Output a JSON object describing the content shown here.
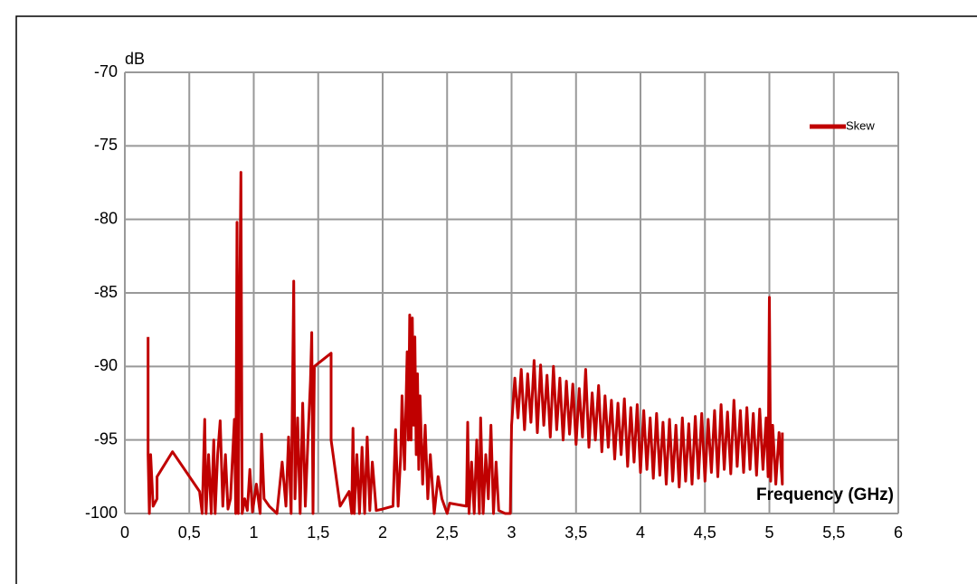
{
  "chart_data": {
    "type": "line",
    "y_label": "dB",
    "x_label": "Frequency (GHz)",
    "xlim": [
      0,
      6
    ],
    "ylim": [
      -100,
      -70
    ],
    "xticks": [
      0,
      {
        "value": 0.5,
        "label": "0,5"
      },
      1,
      {
        "value": 1.5,
        "label": "1,5"
      },
      2,
      {
        "value": 2.5,
        "label": "2,5"
      },
      3,
      {
        "value": 3.5,
        "label": "3,5"
      },
      4,
      {
        "value": 4.5,
        "label": "4,5"
      },
      5,
      {
        "value": 5.5,
        "label": "5,5"
      },
      6
    ],
    "yticks": [
      -100,
      -95,
      -90,
      -85,
      -80,
      -75,
      -70
    ],
    "grid": true,
    "legend": "upper right",
    "x": [
      0.18,
      0.18,
      0.19,
      0.2,
      0.22,
      0.25,
      0.25,
      0.37,
      0.58,
      0.6,
      0.62,
      0.63,
      0.65,
      0.67,
      0.69,
      0.7,
      0.72,
      0.74,
      0.76,
      0.78,
      0.8,
      0.82,
      0.85,
      0.86,
      0.87,
      0.88,
      0.89,
      0.9,
      0.91,
      0.93,
      0.95,
      0.97,
      0.99,
      1.02,
      1.05,
      1.06,
      1.08,
      1.12,
      1.18,
      1.22,
      1.25,
      1.27,
      1.29,
      1.31,
      1.32,
      1.34,
      1.36,
      1.38,
      1.4,
      1.42,
      1.44,
      1.45,
      1.46,
      1.47,
      1.6,
      1.6,
      1.67,
      1.74,
      1.76,
      1.77,
      1.78,
      1.8,
      1.82,
      1.84,
      1.86,
      1.88,
      1.9,
      1.92,
      1.95,
      2.0,
      2.08,
      2.1,
      2.12,
      2.14,
      2.15,
      2.17,
      2.19,
      2.2,
      2.21,
      2.22,
      2.23,
      2.24,
      2.25,
      2.26,
      2.27,
      2.28,
      2.29,
      2.31,
      2.33,
      2.35,
      2.37,
      2.4,
      2.43,
      2.46,
      2.5,
      2.52,
      2.65,
      2.66,
      2.67,
      2.69,
      2.71,
      2.73,
      2.75,
      2.76,
      2.78,
      2.8,
      2.82,
      2.84,
      2.86,
      2.88,
      2.9,
      2.95,
      2.99,
      3.0,
      3.025,
      3.05,
      3.075,
      3.1,
      3.125,
      3.15,
      3.175,
      3.2,
      3.225,
      3.25,
      3.275,
      3.3,
      3.325,
      3.35,
      3.375,
      3.4,
      3.425,
      3.45,
      3.475,
      3.5,
      3.525,
      3.55,
      3.575,
      3.6,
      3.625,
      3.65,
      3.675,
      3.7,
      3.725,
      3.75,
      3.775,
      3.8,
      3.825,
      3.85,
      3.875,
      3.9,
      3.925,
      3.95,
      3.975,
      4.0,
      4.025,
      4.05,
      4.075,
      4.1,
      4.125,
      4.15,
      4.175,
      4.2,
      4.225,
      4.25,
      4.275,
      4.3,
      4.325,
      4.35,
      4.375,
      4.4,
      4.425,
      4.45,
      4.475,
      4.5,
      4.525,
      4.55,
      4.575,
      4.6,
      4.625,
      4.65,
      4.675,
      4.7,
      4.725,
      4.75,
      4.775,
      4.8,
      4.825,
      4.85,
      4.875,
      4.9,
      4.925,
      4.95,
      4.975,
      4.99,
      5.0,
      5.01,
      5.025,
      5.05,
      5.075,
      5.1,
      5.1
    ],
    "series": [
      {
        "name": "Skew",
        "color": "#c00000",
        "values": [
          -88,
          -96,
          -100,
          -96,
          -99.5,
          -99,
          -97.5,
          -95.8,
          -98.5,
          -100,
          -93.6,
          -100,
          -96,
          -100,
          -95,
          -100,
          -96,
          -93.7,
          -99.5,
          -96,
          -99.7,
          -99,
          -93.6,
          -100,
          -80.2,
          -100,
          -87,
          -76.8,
          -100,
          -99,
          -99.8,
          -97,
          -99.9,
          -98,
          -100,
          -94.6,
          -99,
          -99.5,
          -100,
          -96.5,
          -99.5,
          -94.8,
          -100,
          -84.2,
          -99,
          -93.5,
          -100,
          -92.5,
          -99.5,
          -95,
          -91,
          -87.7,
          -100,
          -90,
          -89.1,
          -95,
          -99.5,
          -98.5,
          -100,
          -94.2,
          -100,
          -96,
          -100,
          -95.5,
          -100,
          -94.8,
          -99.8,
          -96.5,
          -99.8,
          -99.7,
          -99.5,
          -94.3,
          -99.5,
          -96,
          -92,
          -97,
          -89,
          -95,
          -86.5,
          -95,
          -86.7,
          -94,
          -88,
          -96,
          -90.5,
          -97,
          -92,
          -98,
          -94,
          -99,
          -96,
          -100,
          -97.5,
          -99,
          -100,
          -99.3,
          -99.5,
          -93.8,
          -100,
          -96.5,
          -100,
          -95,
          -100,
          -93.5,
          -100,
          -96,
          -99,
          -94,
          -100,
          -96.5,
          -99.8,
          -100,
          -100,
          -94,
          -90.8,
          -93.5,
          -90.2,
          -94.3,
          -90.5,
          -93.8,
          -89.6,
          -94.5,
          -89.9,
          -94,
          -90.6,
          -94.8,
          -90,
          -94.3,
          -90.8,
          -95,
          -91,
          -94.6,
          -91.2,
          -95.3,
          -91.5,
          -94.8,
          -90.2,
          -95.5,
          -91.8,
          -95,
          -91.3,
          -95.8,
          -92,
          -95.5,
          -92.3,
          -96.3,
          -92.5,
          -96,
          -92.2,
          -96.8,
          -92.8,
          -96.5,
          -92.6,
          -97.2,
          -93,
          -97,
          -93.5,
          -97.6,
          -93.2,
          -97.4,
          -93.8,
          -98,
          -93.6,
          -97.8,
          -94,
          -98.2,
          -93.5,
          -97.8,
          -93.9,
          -98,
          -93.4,
          -97.6,
          -93.2,
          -97.8,
          -93.6,
          -97.2,
          -93,
          -97.5,
          -92.6,
          -97,
          -93.1,
          -97.3,
          -92.3,
          -96.8,
          -93,
          -97.2,
          -92.8,
          -97,
          -93.2,
          -97.4,
          -92.9,
          -97,
          -93.5,
          -97.5,
          -85.3,
          -97.8,
          -94,
          -98,
          -94.5,
          -98,
          -94.5
        ]
      }
    ]
  }
}
